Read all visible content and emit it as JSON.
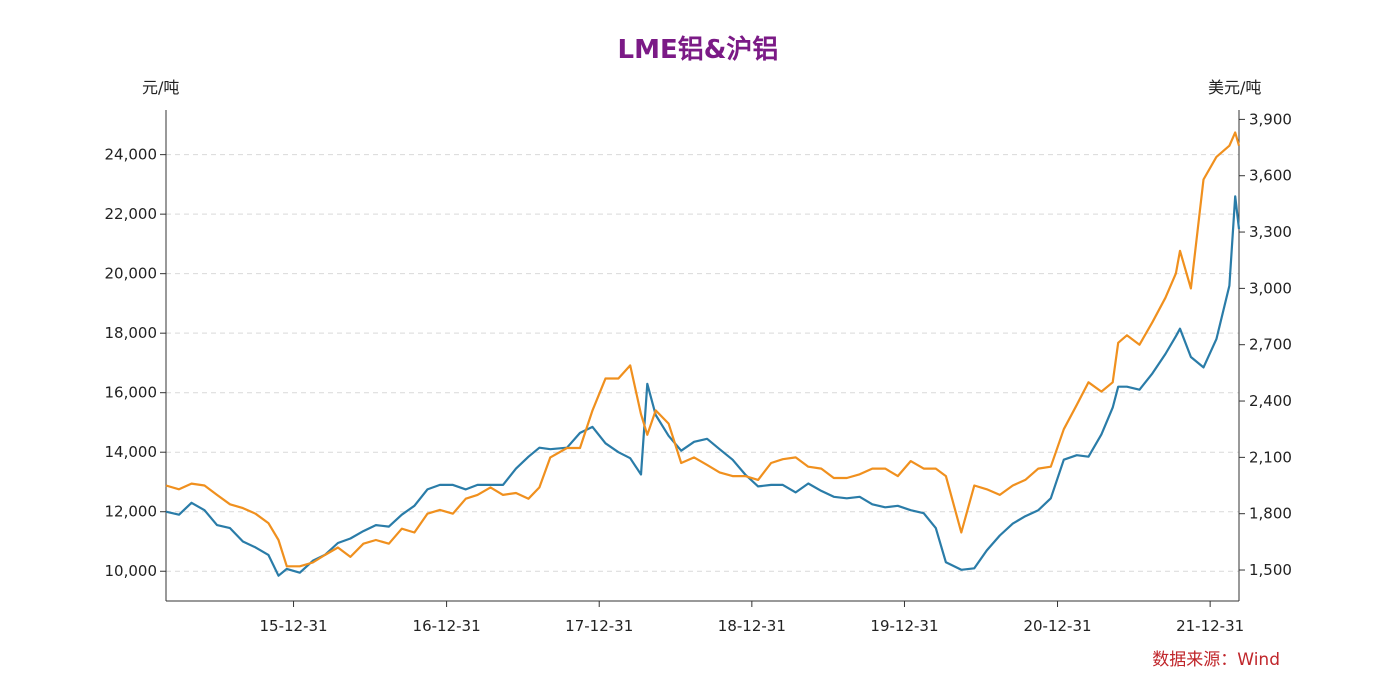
{
  "corner_text": "",
  "chart_data": {
    "type": "line",
    "title": "LME铝&沪铝",
    "y_left_unit": "元/吨",
    "y_right_unit": "美元/吨",
    "source": "数据来源：Wind",
    "x_range": [
      "2015-03-01",
      "2022-03-10"
    ],
    "x_tick_labels": [
      "15-12-31",
      "16-12-31",
      "17-12-31",
      "18-12-31",
      "19-12-31",
      "20-12-31",
      "21-12-31"
    ],
    "x_tick_dates": [
      "2015-12-31",
      "2016-12-31",
      "2017-12-31",
      "2018-12-31",
      "2019-12-31",
      "2020-12-31",
      "2021-12-31"
    ],
    "y_left": {
      "range": [
        9000,
        25500
      ],
      "ticks": [
        10000,
        12000,
        14000,
        16000,
        18000,
        20000,
        22000,
        24000
      ],
      "tick_labels": [
        "10,000",
        "12,000",
        "14,000",
        "16,000",
        "18,000",
        "20,000",
        "22,000",
        "24,000"
      ]
    },
    "y_right": {
      "range": [
        1335,
        3950
      ],
      "ticks": [
        1500,
        1800,
        2100,
        2400,
        2700,
        3000,
        3300,
        3600,
        3900
      ],
      "tick_labels": [
        "1,500",
        "1,800",
        "2,100",
        "2,400",
        "2,700",
        "3,000",
        "3,300",
        "3,600",
        "3,900"
      ]
    },
    "grid": "horizontal-dashed",
    "colors": {
      "series1": "#2a7ca8",
      "series2": "#f0901e",
      "title": "#7b1a86",
      "source": "#c0262b"
    },
    "series": [
      {
        "axis": "left",
        "x": [
          "2015-03-01",
          "2015-04-01",
          "2015-05-01",
          "2015-06-01",
          "2015-07-01",
          "2015-08-01",
          "2015-09-01",
          "2015-10-01",
          "2015-11-01",
          "2015-11-25",
          "2015-12-15",
          "2016-01-15",
          "2016-02-15",
          "2016-03-15",
          "2016-04-15",
          "2016-05-15",
          "2016-06-15",
          "2016-07-15",
          "2016-08-15",
          "2016-09-15",
          "2016-10-15",
          "2016-11-15",
          "2016-12-15",
          "2017-01-15",
          "2017-02-15",
          "2017-03-15",
          "2017-04-15",
          "2017-05-15",
          "2017-06-15",
          "2017-07-15",
          "2017-08-10",
          "2017-09-05",
          "2017-10-15",
          "2017-11-15",
          "2017-12-15",
          "2018-01-15",
          "2018-02-15",
          "2018-03-15",
          "2018-04-10",
          "2018-04-25",
          "2018-05-15",
          "2018-06-15",
          "2018-07-15",
          "2018-08-15",
          "2018-09-15",
          "2018-10-15",
          "2018-11-15",
          "2018-12-15",
          "2019-01-15",
          "2019-02-15",
          "2019-03-15",
          "2019-04-15",
          "2019-05-15",
          "2019-06-15",
          "2019-07-15",
          "2019-08-15",
          "2019-09-15",
          "2019-10-15",
          "2019-11-15",
          "2019-12-15",
          "2020-01-15",
          "2020-02-15",
          "2020-03-15",
          "2020-04-08",
          "2020-05-15",
          "2020-06-15",
          "2020-07-15",
          "2020-08-15",
          "2020-09-15",
          "2020-10-15",
          "2020-11-15",
          "2020-12-15",
          "2021-01-15",
          "2021-02-15",
          "2021-03-15",
          "2021-04-15",
          "2021-05-12",
          "2021-05-25",
          "2021-06-15",
          "2021-07-15",
          "2021-08-15",
          "2021-09-15",
          "2021-10-10",
          "2021-10-20",
          "2021-11-15",
          "2021-12-15",
          "2022-01-15",
          "2022-02-15",
          "2022-03-01",
          "2022-03-10"
        ],
        "values": [
          12000,
          11900,
          12300,
          12050,
          11550,
          11450,
          11000,
          10800,
          10550,
          9850,
          10080,
          9950,
          10350,
          10550,
          10950,
          11100,
          11350,
          11550,
          11500,
          11900,
          12200,
          12750,
          12900,
          12900,
          12750,
          12900,
          12900,
          12900,
          13450,
          13850,
          14150,
          14100,
          14150,
          14650,
          14850,
          14300,
          14000,
          13800,
          13250,
          16300,
          15250,
          14550,
          14050,
          14350,
          14450,
          14100,
          13750,
          13250,
          12850,
          12900,
          12900,
          12650,
          12950,
          12700,
          12500,
          12450,
          12500,
          12250,
          12150,
          12200,
          12050,
          11950,
          11450,
          10300,
          10050,
          10100,
          10700,
          11200,
          11600,
          11850,
          12050,
          12450,
          13750,
          13900,
          13850,
          14600,
          15500,
          16200,
          16200,
          16100,
          16650,
          17300,
          17900,
          18150,
          17200,
          16850,
          17800,
          19600,
          22600,
          21500
        ]
      },
      {
        "axis": "right",
        "x": [
          "2015-03-01",
          "2015-04-01",
          "2015-05-01",
          "2015-06-01",
          "2015-07-01",
          "2015-08-01",
          "2015-09-01",
          "2015-10-01",
          "2015-11-01",
          "2015-11-25",
          "2015-12-15",
          "2016-01-15",
          "2016-02-15",
          "2016-03-15",
          "2016-04-15",
          "2016-05-15",
          "2016-06-15",
          "2016-07-15",
          "2016-08-15",
          "2016-09-15",
          "2016-10-15",
          "2016-11-15",
          "2016-12-15",
          "2017-01-15",
          "2017-02-15",
          "2017-03-15",
          "2017-04-15",
          "2017-05-15",
          "2017-06-15",
          "2017-07-15",
          "2017-08-10",
          "2017-09-05",
          "2017-10-15",
          "2017-11-15",
          "2017-12-15",
          "2018-01-15",
          "2018-02-15",
          "2018-03-15",
          "2018-04-10",
          "2018-04-25",
          "2018-05-15",
          "2018-06-15",
          "2018-07-15",
          "2018-08-15",
          "2018-09-15",
          "2018-10-15",
          "2018-11-15",
          "2018-12-15",
          "2019-01-15",
          "2019-02-15",
          "2019-03-15",
          "2019-04-15",
          "2019-05-15",
          "2019-06-15",
          "2019-07-15",
          "2019-08-15",
          "2019-09-15",
          "2019-10-15",
          "2019-11-15",
          "2019-12-15",
          "2020-01-15",
          "2020-02-15",
          "2020-03-15",
          "2020-04-08",
          "2020-05-15",
          "2020-06-15",
          "2020-07-15",
          "2020-08-15",
          "2020-09-15",
          "2020-10-15",
          "2020-11-15",
          "2020-12-15",
          "2021-01-15",
          "2021-02-15",
          "2021-03-15",
          "2021-04-15",
          "2021-05-12",
          "2021-05-25",
          "2021-06-15",
          "2021-07-15",
          "2021-08-15",
          "2021-09-15",
          "2021-10-10",
          "2021-10-20",
          "2021-11-15",
          "2021-12-15",
          "2022-01-15",
          "2022-02-15",
          "2022-03-01",
          "2022-03-10"
        ],
        "values": [
          1950,
          1930,
          1960,
          1950,
          1900,
          1850,
          1830,
          1800,
          1750,
          1660,
          1520,
          1520,
          1540,
          1580,
          1620,
          1570,
          1640,
          1660,
          1640,
          1720,
          1700,
          1800,
          1820,
          1800,
          1880,
          1900,
          1940,
          1900,
          1910,
          1880,
          1940,
          2100,
          2150,
          2150,
          2350,
          2520,
          2520,
          2590,
          2330,
          2220,
          2350,
          2280,
          2070,
          2100,
          2060,
          2020,
          2000,
          2000,
          1980,
          2070,
          2090,
          2100,
          2050,
          2040,
          1990,
          1990,
          2010,
          2040,
          2040,
          2000,
          2080,
          2040,
          2040,
          2000,
          1700,
          1950,
          1930,
          1900,
          1950,
          1980,
          2040,
          2050,
          2250,
          2380,
          2500,
          2450,
          2500,
          2710,
          2750,
          2700,
          2820,
          2950,
          3080,
          3200,
          3000,
          3580,
          3700,
          3760,
          3830,
          3760
        ]
      }
    ]
  }
}
